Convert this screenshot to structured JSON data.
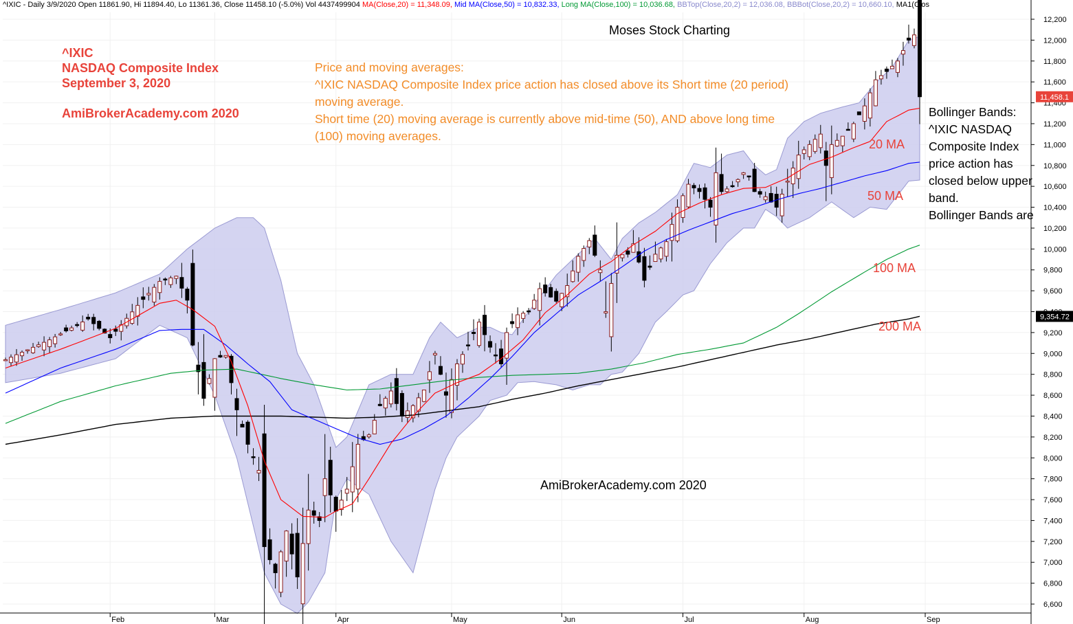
{
  "header": {
    "prefix": "^IXIC - Daily 3/9/2020 Open 11861.90, Hi 11894.40, Lo 11361.36, Close 11458.10 (-5.0%) Vol 4437499904 ",
    "ma20": "MA(Close,20) = 11,348.09,",
    "ma50": "Mid MA(Close,50) = 10,832.33,",
    "ma100": "Long MA(Close,100) = 10,036.68,",
    "bbtop": "BBTop(Close,20,2) = 12,036.08,",
    "bbbot": "BBBot(Close,20,2) = 10,660.10,",
    "ma1": "MA1(Clos"
  },
  "title_block": {
    "symbol": "^IXIC",
    "name": "NASDAQ Composite Index",
    "date": "September 3, 2020",
    "site": "AmiBrokerAcademy.com  2020"
  },
  "chart_title": "Moses Stock Charting",
  "watermark": "AmiBrokerAcademy.com  2020",
  "commentary": {
    "heading": "Price and moving averages:",
    "line1": "^IXIC NASDAQ Composite Index price action has closed above its Short time (20 period) moving average.",
    "line2": "Short time (20) moving average is currently above mid-time (50), AND above long time (100) moving averages."
  },
  "bb_note": {
    "heading": "Bollinger Bands:",
    "body": "^IXIC NASDAQ Composite Index price action has closed below upper band.",
    "tail": "Bollinger Bands are"
  },
  "ma_labels": {
    "ma20": "20 MA",
    "ma50": "50 MA",
    "ma100": "100 MA",
    "ma200": "200 MA"
  },
  "price_tags": {
    "last": "11,458.1",
    "ma200": "9,354.72"
  },
  "colors": {
    "band_fill": "#ccccee",
    "band_edge": "#9a9ad2",
    "ma20": "#ff0000",
    "ma50": "#0000ff",
    "ma100": "#009933",
    "ma200": "#000000",
    "up_candle": "#ffffff",
    "down_candle": "#000000",
    "title_red": "#e8433a",
    "commentary_orange": "#f28c28"
  },
  "chart_data": {
    "type": "candlestick",
    "y_axis": {
      "position": "right",
      "ylim": [
        6500,
        12300
      ],
      "ticks": [
        6600,
        6800,
        7000,
        7200,
        7400,
        7600,
        7800,
        8000,
        8200,
        8400,
        8600,
        8800,
        9000,
        9200,
        9400,
        9600,
        9800,
        10000,
        10200,
        10400,
        10600,
        10800,
        11000,
        11200,
        11400,
        11600,
        11800,
        12000,
        12200
      ],
      "tick_labels": [
        "6,600",
        "6,800",
        "7,000",
        "7,200",
        "7,400",
        "7,600",
        "7,800",
        "8,000",
        "8,200",
        "8,400",
        "8,600",
        "8,800",
        "9,000",
        "9,200",
        "9,400",
        "9,600",
        "9,800",
        "10,000",
        "10,200",
        "10,400",
        "10,600",
        "10,800",
        "11,000",
        "11,200",
        "11,400",
        "11,600",
        "11,800",
        "12,000",
        "12,200"
      ]
    },
    "x_axis": {
      "months": [
        {
          "label": "Feb",
          "index": 19
        },
        {
          "label": "Mar",
          "index": 38
        },
        {
          "label": "Apr",
          "index": 60
        },
        {
          "label": "May",
          "index": 81
        },
        {
          "label": "Jun",
          "index": 101
        },
        {
          "label": "Jul",
          "index": 123
        },
        {
          "label": "Aug",
          "index": 145
        },
        {
          "label": "Sep",
          "index": 167
        }
      ],
      "count": 169
    },
    "anchors": {
      "close": [
        [
          0,
          8940
        ],
        [
          8,
          9130
        ],
        [
          15,
          9330
        ],
        [
          19,
          9150
        ],
        [
          24,
          9460
        ],
        [
          28,
          9690
        ],
        [
          31,
          9740
        ],
        [
          33,
          9510
        ],
        [
          34,
          9080
        ],
        [
          36,
          8570
        ],
        [
          38,
          8950
        ],
        [
          40,
          8980
        ],
        [
          42,
          8460
        ],
        [
          44,
          8130
        ],
        [
          46,
          7880
        ],
        [
          47,
          7150
        ],
        [
          49,
          6900
        ],
        [
          51,
          7300
        ],
        [
          53,
          6860
        ],
        [
          55,
          7500
        ],
        [
          57,
          7400
        ],
        [
          58,
          7800
        ],
        [
          60,
          7490
        ],
        [
          62,
          7700
        ],
        [
          64,
          8130
        ],
        [
          66,
          8220
        ],
        [
          68,
          8500
        ],
        [
          70,
          8640
        ],
        [
          72,
          8400
        ],
        [
          74,
          8500
        ],
        [
          76,
          8650
        ],
        [
          78,
          9000
        ],
        [
          80,
          8600
        ],
        [
          82,
          8900
        ],
        [
          84,
          9080
        ],
        [
          86,
          9300
        ],
        [
          88,
          9060
        ],
        [
          90,
          8900
        ],
        [
          91,
          9200
        ],
        [
          93,
          9370
        ],
        [
          95,
          9400
        ],
        [
          97,
          9620
        ],
        [
          100,
          9500
        ],
        [
          102,
          9650
        ],
        [
          104,
          9930
        ],
        [
          106,
          10080
        ],
        [
          108,
          9800
        ],
        [
          109,
          9400
        ],
        [
          111,
          9940
        ],
        [
          113,
          9950
        ],
        [
          114,
          10050
        ],
        [
          116,
          9700
        ],
        [
          118,
          9950
        ],
        [
          120,
          10070
        ],
        [
          122,
          10400
        ],
        [
          124,
          10620
        ],
        [
          126,
          10550
        ],
        [
          128,
          10400
        ],
        [
          129,
          10730
        ],
        [
          130,
          10550
        ],
        [
          132,
          10600
        ],
        [
          134,
          10730
        ],
        [
          135,
          10690
        ],
        [
          136,
          10550
        ],
        [
          138,
          10500
        ],
        [
          140,
          10400
        ],
        [
          142,
          10650
        ],
        [
          144,
          10900
        ],
        [
          146,
          11000
        ],
        [
          148,
          11100
        ],
        [
          149,
          10800
        ],
        [
          150,
          11000
        ],
        [
          152,
          11080
        ],
        [
          154,
          11200
        ],
        [
          156,
          11370
        ],
        [
          158,
          11620
        ],
        [
          160,
          11700
        ],
        [
          162,
          11800
        ],
        [
          164,
          12000
        ],
        [
          165,
          12050
        ],
        [
          166,
          11458
        ]
      ],
      "bb_upper": [
        [
          0,
          9270
        ],
        [
          10,
          9420
        ],
        [
          20,
          9580
        ],
        [
          28,
          9760
        ],
        [
          33,
          10000
        ],
        [
          38,
          10200
        ],
        [
          42,
          10300
        ],
        [
          45,
          10300
        ],
        [
          47,
          10200
        ],
        [
          50,
          9700
        ],
        [
          53,
          9000
        ],
        [
          56,
          8700
        ],
        [
          58,
          8400
        ],
        [
          60,
          8100
        ],
        [
          62,
          8200
        ],
        [
          66,
          8700
        ],
        [
          70,
          8800
        ],
        [
          74,
          8800
        ],
        [
          77,
          9150
        ],
        [
          79,
          9300
        ],
        [
          82,
          9150
        ],
        [
          86,
          9250
        ],
        [
          88,
          9250
        ],
        [
          90,
          9200
        ],
        [
          92,
          9180
        ],
        [
          95,
          9400
        ],
        [
          100,
          9750
        ],
        [
          104,
          9950
        ],
        [
          107,
          10100
        ],
        [
          110,
          9900
        ],
        [
          112,
          10100
        ],
        [
          115,
          10250
        ],
        [
          118,
          10350
        ],
        [
          122,
          10520
        ],
        [
          125,
          10820
        ],
        [
          128,
          10780
        ],
        [
          131,
          10900
        ],
        [
          134,
          10940
        ],
        [
          136,
          10800
        ],
        [
          138,
          10710
        ],
        [
          140,
          10760
        ],
        [
          142,
          11060
        ],
        [
          145,
          11220
        ],
        [
          148,
          11300
        ],
        [
          152,
          11360
        ],
        [
          155,
          11400
        ],
        [
          158,
          11590
        ],
        [
          161,
          11740
        ],
        [
          164,
          12000
        ],
        [
          166,
          12036
        ]
      ],
      "bb_lower": [
        [
          0,
          8720
        ],
        [
          10,
          8810
        ],
        [
          20,
          8950
        ],
        [
          28,
          9270
        ],
        [
          33,
          9150
        ],
        [
          38,
          8600
        ],
        [
          42,
          8000
        ],
        [
          45,
          7350
        ],
        [
          47,
          6900
        ],
        [
          50,
          6600
        ],
        [
          53,
          6510
        ],
        [
          55,
          6620
        ],
        [
          58,
          6900
        ],
        [
          60,
          7600
        ],
        [
          62,
          7800
        ],
        [
          66,
          7650
        ],
        [
          70,
          7200
        ],
        [
          74,
          6900
        ],
        [
          78,
          7700
        ],
        [
          80,
          8000
        ],
        [
          82,
          8200
        ],
        [
          86,
          8400
        ],
        [
          88,
          8550
        ],
        [
          91,
          8600
        ],
        [
          93,
          8720
        ],
        [
          96,
          8730
        ],
        [
          100,
          8700
        ],
        [
          103,
          8650
        ],
        [
          106,
          8700
        ],
        [
          108,
          8700
        ],
        [
          110,
          8800
        ],
        [
          112,
          8820
        ],
        [
          115,
          9000
        ],
        [
          118,
          9300
        ],
        [
          120,
          9400
        ],
        [
          123,
          9560
        ],
        [
          125,
          9600
        ],
        [
          128,
          9860
        ],
        [
          131,
          10060
        ],
        [
          134,
          10200
        ],
        [
          136,
          10200
        ],
        [
          138,
          10380
        ],
        [
          140,
          10310
        ],
        [
          142,
          10200
        ],
        [
          146,
          10300
        ],
        [
          150,
          10450
        ],
        [
          154,
          10300
        ],
        [
          157,
          10400
        ],
        [
          160,
          10380
        ],
        [
          164,
          10650
        ],
        [
          166,
          10660
        ]
      ],
      "ma20": [
        [
          0,
          8860
        ],
        [
          10,
          9040
        ],
        [
          20,
          9240
        ],
        [
          28,
          9480
        ],
        [
          31,
          9510
        ],
        [
          34,
          9420
        ],
        [
          38,
          9260
        ],
        [
          41,
          8920
        ],
        [
          44,
          8500
        ],
        [
          47,
          7970
        ],
        [
          50,
          7600
        ],
        [
          54,
          7440
        ],
        [
          58,
          7430
        ],
        [
          60,
          7490
        ],
        [
          63,
          7560
        ],
        [
          66,
          7800
        ],
        [
          70,
          8140
        ],
        [
          74,
          8400
        ],
        [
          78,
          8620
        ],
        [
          82,
          8720
        ],
        [
          86,
          8800
        ],
        [
          90,
          8950
        ],
        [
          94,
          9130
        ],
        [
          98,
          9390
        ],
        [
          102,
          9560
        ],
        [
          106,
          9760
        ],
        [
          110,
          9880
        ],
        [
          114,
          10040
        ],
        [
          118,
          10170
        ],
        [
          122,
          10340
        ],
        [
          126,
          10440
        ],
        [
          130,
          10520
        ],
        [
          134,
          10580
        ],
        [
          138,
          10590
        ],
        [
          142,
          10680
        ],
        [
          146,
          10810
        ],
        [
          150,
          10880
        ],
        [
          154,
          10970
        ],
        [
          157,
          11030
        ],
        [
          160,
          11220
        ],
        [
          164,
          11330
        ],
        [
          166,
          11348
        ]
      ],
      "ma50": [
        [
          0,
          8620
        ],
        [
          10,
          8860
        ],
        [
          20,
          9040
        ],
        [
          28,
          9220
        ],
        [
          32,
          9230
        ],
        [
          36,
          9230
        ],
        [
          40,
          9080
        ],
        [
          44,
          8900
        ],
        [
          48,
          8730
        ],
        [
          52,
          8460
        ],
        [
          56,
          8370
        ],
        [
          60,
          8280
        ],
        [
          64,
          8190
        ],
        [
          68,
          8130
        ],
        [
          72,
          8180
        ],
        [
          76,
          8280
        ],
        [
          80,
          8400
        ],
        [
          84,
          8570
        ],
        [
          88,
          8760
        ],
        [
          92,
          8970
        ],
        [
          96,
          9200
        ],
        [
          100,
          9380
        ],
        [
          104,
          9560
        ],
        [
          108,
          9690
        ],
        [
          112,
          9830
        ],
        [
          116,
          9980
        ],
        [
          120,
          10090
        ],
        [
          124,
          10180
        ],
        [
          128,
          10260
        ],
        [
          132,
          10340
        ],
        [
          136,
          10400
        ],
        [
          140,
          10470
        ],
        [
          144,
          10530
        ],
        [
          148,
          10580
        ],
        [
          152,
          10640
        ],
        [
          156,
          10700
        ],
        [
          160,
          10750
        ],
        [
          164,
          10820
        ],
        [
          166,
          10832
        ]
      ],
      "ma100": [
        [
          0,
          8330
        ],
        [
          10,
          8540
        ],
        [
          20,
          8690
        ],
        [
          30,
          8810
        ],
        [
          36,
          8840
        ],
        [
          42,
          8850
        ],
        [
          50,
          8760
        ],
        [
          56,
          8700
        ],
        [
          62,
          8650
        ],
        [
          68,
          8660
        ],
        [
          74,
          8700
        ],
        [
          80,
          8740
        ],
        [
          86,
          8770
        ],
        [
          92,
          8790
        ],
        [
          98,
          8800
        ],
        [
          104,
          8810
        ],
        [
          110,
          8850
        ],
        [
          116,
          8910
        ],
        [
          122,
          8990
        ],
        [
          128,
          9040
        ],
        [
          134,
          9100
        ],
        [
          140,
          9250
        ],
        [
          144,
          9380
        ],
        [
          150,
          9590
        ],
        [
          156,
          9780
        ],
        [
          160,
          9900
        ],
        [
          164,
          10000
        ],
        [
          166,
          10037
        ]
      ],
      "ma200": [
        [
          0,
          8130
        ],
        [
          10,
          8220
        ],
        [
          20,
          8320
        ],
        [
          30,
          8380
        ],
        [
          38,
          8400
        ],
        [
          44,
          8400
        ],
        [
          50,
          8400
        ],
        [
          56,
          8390
        ],
        [
          62,
          8380
        ],
        [
          68,
          8390
        ],
        [
          74,
          8410
        ],
        [
          80,
          8450
        ],
        [
          86,
          8490
        ],
        [
          92,
          8560
        ],
        [
          98,
          8620
        ],
        [
          104,
          8690
        ],
        [
          110,
          8750
        ],
        [
          116,
          8810
        ],
        [
          122,
          8870
        ],
        [
          128,
          8940
        ],
        [
          134,
          9010
        ],
        [
          140,
          9080
        ],
        [
          146,
          9140
        ],
        [
          152,
          9210
        ],
        [
          158,
          9280
        ],
        [
          164,
          9330
        ],
        [
          166,
          9355
        ]
      ]
    }
  }
}
